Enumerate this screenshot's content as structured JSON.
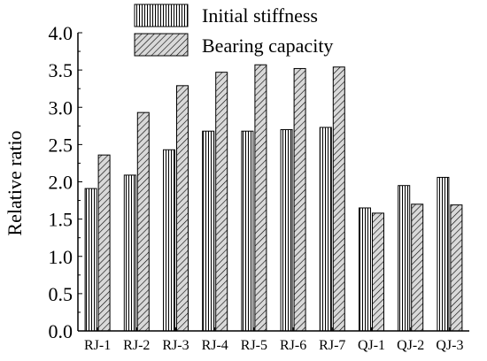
{
  "chart_data": {
    "type": "bar",
    "categories": [
      "RJ-1",
      "RJ-2",
      "RJ-3",
      "RJ-4",
      "RJ-5",
      "RJ-6",
      "RJ-7",
      "QJ-1",
      "QJ-2",
      "QJ-3"
    ],
    "series": [
      {
        "name": "Initial stiffness",
        "pattern": "vertical-lines",
        "values": [
          1.91,
          2.09,
          2.43,
          2.68,
          2.68,
          2.7,
          2.73,
          1.65,
          1.95,
          2.06
        ]
      },
      {
        "name": "Bearing capacity",
        "pattern": "diagonal-hatch",
        "values": [
          2.36,
          2.93,
          3.29,
          3.47,
          3.57,
          3.52,
          3.54,
          1.58,
          1.7,
          1.69
        ]
      }
    ],
    "ylabel": "Relative ratio",
    "xlabel": "",
    "ylim": [
      0,
      4.0
    ],
    "yticks": [
      "0.0",
      "0.5",
      "1.0",
      "1.5",
      "2.0",
      "2.5",
      "3.0",
      "3.5",
      "4.0"
    ],
    "grid": false,
    "legend": "top",
    "colors": {
      "axis": "#000000",
      "bar_fill": "#ffffff",
      "hatch": "#000000"
    }
  }
}
